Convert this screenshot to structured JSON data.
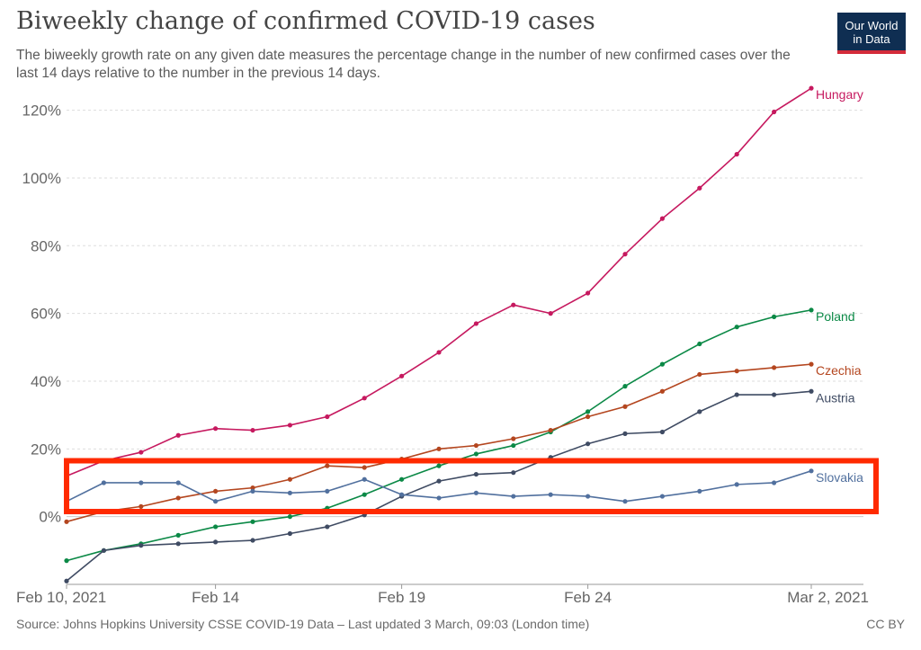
{
  "header": {
    "title": "Biweekly change of confirmed COVID-19 cases",
    "subtitle": "The biweekly growth rate on any given date measures the percentage change in the number of new confirmed cases over the last 14 days relative to the number in the previous 14 days.",
    "logo_line1": "Our World",
    "logo_line2": "in Data"
  },
  "footer": {
    "source": "Source: Johns Hopkins University CSSE COVID-19 Data – Last updated 3 March, 09:03 (London time)",
    "license": "CC BY"
  },
  "annotation": {
    "type": "highlight-rectangle",
    "color": "#ff2a00",
    "y_range": [
      1.5,
      16.5
    ]
  },
  "chart_data": {
    "type": "line",
    "title": "Biweekly change of confirmed COVID-19 cases",
    "xlabel": "",
    "ylabel": "",
    "x": [
      "2021-02-10",
      "2021-02-11",
      "2021-02-12",
      "2021-02-13",
      "2021-02-14",
      "2021-02-15",
      "2021-02-16",
      "2021-02-17",
      "2021-02-18",
      "2021-02-19",
      "2021-02-20",
      "2021-02-21",
      "2021-02-22",
      "2021-02-23",
      "2021-02-24",
      "2021-02-25",
      "2021-02-26",
      "2021-02-27",
      "2021-02-28",
      "2021-03-01",
      "2021-03-02"
    ],
    "x_ticks": [
      {
        "date": "2021-02-10",
        "label": "Feb 10, 2021"
      },
      {
        "date": "2021-02-14",
        "label": "Feb 14"
      },
      {
        "date": "2021-02-19",
        "label": "Feb 19"
      },
      {
        "date": "2021-02-24",
        "label": "Feb 24"
      },
      {
        "date": "2021-03-02",
        "label": "Mar 2, 2021"
      }
    ],
    "y_ticks": [
      0,
      20,
      40,
      60,
      80,
      100,
      120
    ],
    "y_tick_labels": [
      "0%",
      "20%",
      "40%",
      "60%",
      "80%",
      "100%",
      "120%"
    ],
    "ylim": [
      -20,
      126
    ],
    "grid": "horizontal-dashed",
    "legend": "right-end labels",
    "series": [
      {
        "name": "Hungary",
        "color": "#c6195f",
        "values": [
          12,
          16.5,
          19,
          24,
          26,
          25.5,
          27,
          29.5,
          35,
          41.5,
          48.5,
          57,
          62.5,
          60,
          66,
          77.5,
          88,
          97,
          107,
          119.5,
          126.5
        ]
      },
      {
        "name": "Poland",
        "color": "#0b8946",
        "values": [
          -13,
          -10,
          -8,
          -5.5,
          -3,
          -1.5,
          0,
          2.5,
          6.5,
          11,
          15,
          18.5,
          21,
          25,
          31,
          38.5,
          45,
          51,
          56,
          59,
          61
        ]
      },
      {
        "name": "Czechia",
        "color": "#b4461f",
        "values": [
          -1.5,
          1.5,
          3,
          5.5,
          7.5,
          8.5,
          11,
          15,
          14.5,
          17,
          20,
          21,
          23,
          25.5,
          29.5,
          32.5,
          37,
          42,
          43,
          44,
          45
        ]
      },
      {
        "name": "Austria",
        "color": "#3f4b63",
        "values": [
          -19,
          -10,
          -8.5,
          -8,
          -7.5,
          -7,
          -5,
          -3,
          0.5,
          6,
          10.5,
          12.5,
          13,
          17.5,
          21.5,
          24.5,
          25,
          31,
          36,
          36,
          37
        ]
      },
      {
        "name": "Slovakia",
        "color": "#51709e",
        "values": [
          4.5,
          10,
          10,
          10,
          4.5,
          7.5,
          7,
          7.5,
          11,
          6.5,
          5.5,
          7,
          6,
          6.5,
          6,
          4.5,
          6,
          7.5,
          9.5,
          10,
          13.5
        ]
      }
    ]
  }
}
